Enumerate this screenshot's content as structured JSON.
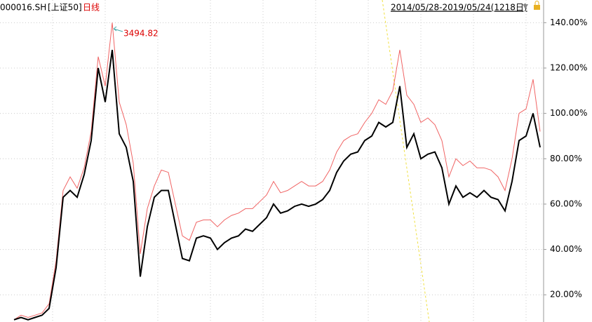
{
  "chart_data": {
    "type": "line",
    "code": "000016.SH",
    "index_name": "[上证50]",
    "period": "日线",
    "range": "2014/05/28-2019/05/24(1218日)",
    "annotation": "3494.82",
    "ylim": [
      8,
      150
    ],
    "yticks": [
      {
        "value": 20,
        "label": "20.00%"
      },
      {
        "value": 40,
        "label": "40.00%"
      },
      {
        "value": 60,
        "label": "60.00%"
      },
      {
        "value": 80,
        "label": "80.00%"
      },
      {
        "value": 100,
        "label": "100.00%"
      },
      {
        "value": 120,
        "label": "120.00%"
      },
      {
        "value": 140,
        "label": "140.00%"
      }
    ],
    "grid": true,
    "series": [
      {
        "color": "#f06464",
        "values": [
          9,
          11,
          10,
          11,
          12,
          16,
          35,
          66,
          72,
          67,
          76,
          92,
          125,
          112,
          140,
          105,
          95,
          78,
          38,
          58,
          68,
          75,
          74,
          60,
          46,
          44,
          52,
          53,
          53,
          50,
          53,
          55,
          56,
          58,
          58,
          61,
          64,
          70,
          65,
          66,
          68,
          70,
          68,
          68,
          70,
          75,
          83,
          88,
          90,
          91,
          96,
          100,
          106,
          104,
          110,
          128,
          108,
          104,
          96,
          98,
          95,
          88,
          72,
          80,
          77,
          79,
          76,
          76,
          75,
          72,
          66,
          80,
          100,
          102,
          115,
          92
        ]
      },
      {
        "color": "#000000",
        "values": [
          9,
          10,
          9,
          10,
          11,
          14,
          32,
          63,
          66,
          63,
          73,
          88,
          120,
          105,
          128,
          91,
          85,
          70,
          28,
          50,
          63,
          66,
          66,
          51,
          36,
          35,
          45,
          46,
          45,
          40,
          43,
          45,
          46,
          49,
          48,
          51,
          54,
          60,
          56,
          57,
          59,
          60,
          59,
          60,
          62,
          66,
          74,
          79,
          82,
          83,
          88,
          90,
          96,
          94,
          96,
          112,
          85,
          91,
          80,
          82,
          83,
          76,
          60,
          68,
          63,
          65,
          63,
          66,
          63,
          62,
          57,
          70,
          88,
          90,
          100,
          85
        ]
      }
    ]
  }
}
